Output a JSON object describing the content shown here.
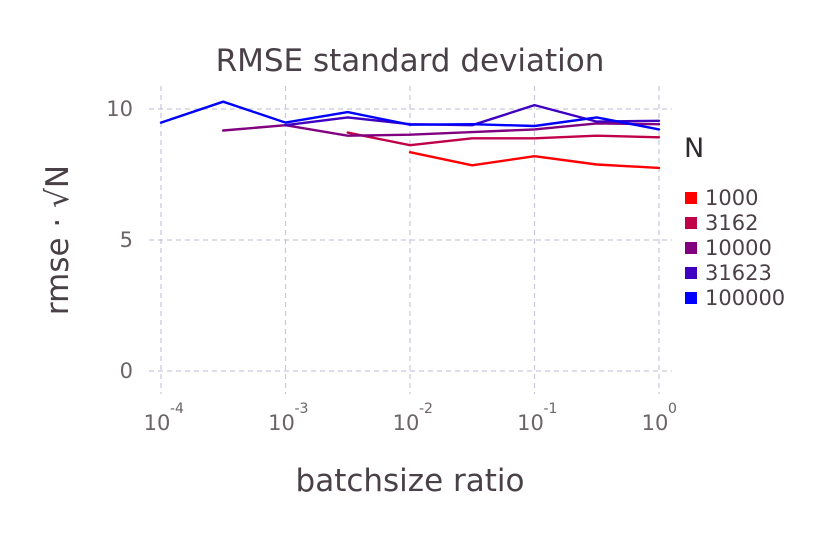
{
  "chart_data": {
    "type": "line",
    "title": "RMSE standard deviation",
    "xlabel": "batchsize ratio",
    "ylabel": "rmse · √N",
    "xscale": "log10",
    "xlim_exp": [
      -4,
      0
    ],
    "ylim": [
      0,
      10
    ],
    "x_ticks": [
      {
        "base": "10",
        "exp": "-4",
        "value": 0.0001
      },
      {
        "base": "10",
        "exp": "-3",
        "value": 0.001
      },
      {
        "base": "10",
        "exp": "-2",
        "value": 0.01
      },
      {
        "base": "10",
        "exp": "-1",
        "value": 0.1
      },
      {
        "base": "10",
        "exp": "0",
        "value": 1
      }
    ],
    "y_ticks": [
      {
        "label": "0",
        "value": 0
      },
      {
        "label": "5",
        "value": 5
      },
      {
        "label": "10",
        "value": 10
      }
    ],
    "grid": true,
    "legend_title": "N",
    "legend_position": "right",
    "series": [
      {
        "name": "1000",
        "color": "#ff0000",
        "x": [
          0.01,
          0.0316,
          0.1,
          0.316,
          1
        ],
        "y": [
          8.35,
          7.85,
          8.2,
          7.88,
          7.75
        ]
      },
      {
        "name": "3162",
        "color": "#c1004a",
        "x": [
          0.00316,
          0.01,
          0.0316,
          0.1,
          0.316,
          1
        ],
        "y": [
          9.1,
          8.62,
          8.88,
          8.88,
          8.98,
          8.92
        ]
      },
      {
        "name": "10000",
        "color": "#800080",
        "x": [
          0.000316,
          0.001,
          0.00316,
          0.01,
          0.0316,
          0.1,
          0.316,
          1
        ],
        "y": [
          9.18,
          9.38,
          8.98,
          9.02,
          9.12,
          9.22,
          9.45,
          9.42
        ]
      },
      {
        "name": "31623",
        "color": "#3f00c1",
        "x": [
          0.001,
          0.00316,
          0.01,
          0.0316,
          0.1,
          0.316,
          1
        ],
        "y": [
          9.38,
          9.68,
          9.42,
          9.38,
          10.15,
          9.52,
          9.55
        ]
      },
      {
        "name": "100000",
        "color": "#0000ff",
        "x": [
          0.0001,
          0.000316,
          0.001,
          0.00316,
          0.01,
          0.0316,
          0.1,
          0.316,
          1
        ],
        "y": [
          9.48,
          10.28,
          9.48,
          9.88,
          9.4,
          9.42,
          9.35,
          9.68,
          9.22
        ]
      }
    ]
  }
}
